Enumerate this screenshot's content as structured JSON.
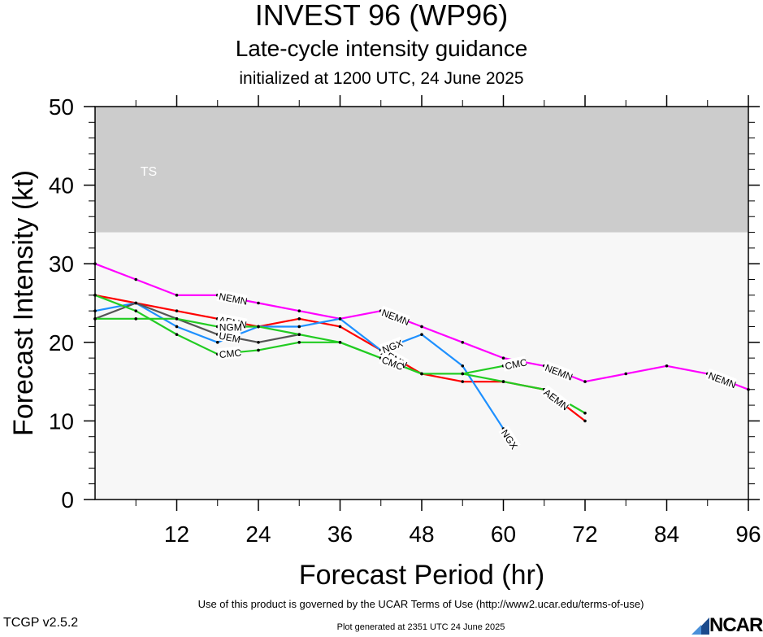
{
  "header": {
    "title": "INVEST 96 (WP96)",
    "subtitle": "Late-cycle intensity guidance",
    "init_line": "initialized at 1200 UTC, 24 June 2025"
  },
  "footer": {
    "terms": "Use of this product is governed by the UCAR Terms of Use (http://www2.ucar.edu/terms-of-use)",
    "version": "TCGP v2.5.2",
    "generated": "Plot generated at 2351 UTC   24 June 2025",
    "logo_text": "NCAR"
  },
  "chart_data": {
    "type": "line",
    "xlabel": "Forecast Period (hr)",
    "ylabel": "Forecast Intensity (kt)",
    "xlim": [
      0,
      96
    ],
    "ylim": [
      0,
      50
    ],
    "xticks": [
      12,
      24,
      36,
      48,
      60,
      72,
      84,
      96
    ],
    "yticks": [
      0,
      10,
      20,
      30,
      40,
      50
    ],
    "grid": false,
    "bands": [
      {
        "label": "TS",
        "from": 34,
        "to": 50,
        "color": "#cccccc"
      }
    ],
    "series": [
      {
        "name": "NEMN",
        "color": "#ff00ff",
        "x": [
          0,
          6,
          12,
          18,
          24,
          30,
          36,
          42,
          48,
          54,
          60,
          66,
          72,
          78,
          84,
          90,
          96
        ],
        "y": [
          30,
          28,
          26,
          26,
          25,
          24,
          23,
          24,
          22,
          20,
          18,
          17,
          15,
          16,
          17,
          16,
          14
        ],
        "labels_at": [
          18,
          42,
          66,
          90
        ]
      },
      {
        "name": "AEMN",
        "color": "#ff0000",
        "x": [
          0,
          6,
          12,
          18,
          24,
          30,
          36,
          42,
          48,
          54,
          60,
          66,
          72
        ],
        "y": [
          26,
          25,
          24,
          23,
          22,
          23,
          22,
          19,
          16,
          15,
          15,
          14,
          10
        ],
        "labels_at": [
          18,
          42,
          66
        ]
      },
      {
        "name": "NGX",
        "color": "#1e90ff",
        "x": [
          0,
          6,
          12,
          18,
          24,
          30,
          36,
          42,
          48,
          54,
          60
        ],
        "y": [
          24,
          25,
          22,
          20,
          22,
          22,
          23,
          19,
          21,
          17,
          9
        ],
        "labels_at": [
          42,
          60
        ]
      },
      {
        "name": "UEM",
        "color": "#555555",
        "x": [
          0,
          6,
          12,
          18,
          24,
          30
        ],
        "y": [
          23,
          25,
          23,
          21,
          20,
          21
        ],
        "labels_at": [
          18
        ]
      },
      {
        "name": "NGM",
        "color": "#22cc22",
        "x": [
          0,
          6,
          12,
          18,
          24,
          30,
          36,
          42,
          48,
          54,
          60,
          66,
          72
        ],
        "y": [
          23,
          23,
          23,
          22,
          22,
          21,
          20,
          18,
          16,
          16,
          15,
          14,
          11
        ],
        "labels_at": [
          18
        ]
      },
      {
        "name": "CMC",
        "color": "#22cc22",
        "x": [
          0,
          6,
          12,
          18,
          24,
          30,
          36,
          42,
          48,
          54,
          60
        ],
        "y": [
          26,
          24,
          21,
          18.5,
          19,
          20,
          20,
          18,
          16,
          16,
          17
        ],
        "labels_at": [
          18,
          42,
          60
        ]
      }
    ]
  }
}
